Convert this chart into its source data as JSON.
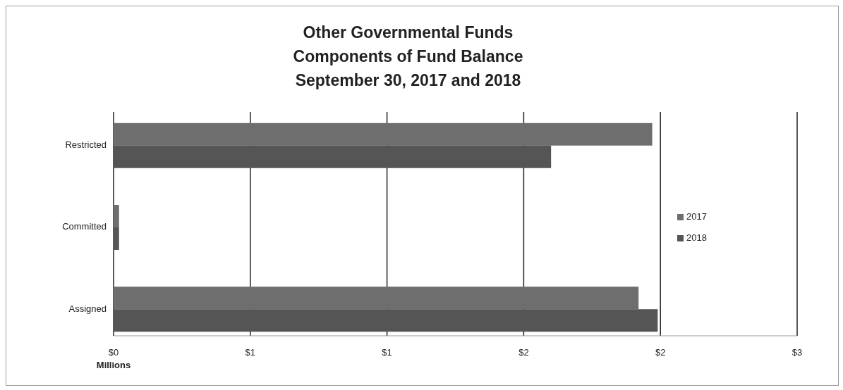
{
  "chart_data": {
    "type": "bar",
    "orientation": "horizontal",
    "title": "Other Governmental Funds\nComponents of Fund Balance\nSeptember 30, 2017 and 2018",
    "xlabel": "Millions",
    "categories": [
      "Restricted",
      "Committed",
      "Assigned"
    ],
    "series": [
      {
        "name": "2017",
        "color": "#6e6e6e",
        "values": [
          1.97,
          0.02,
          1.92
        ]
      },
      {
        "name": "2018",
        "color": "#555555",
        "values": [
          1.6,
          0.02,
          1.99
        ]
      }
    ],
    "xlim": [
      0,
      2.5
    ],
    "xticks": [
      {
        "value": 0,
        "label": "$0"
      },
      {
        "value": 0.5,
        "label": "$1"
      },
      {
        "value": 1,
        "label": "$1"
      },
      {
        "value": 1.5,
        "label": "$2"
      },
      {
        "value": 2,
        "label": "$2"
      },
      {
        "value": 2.5,
        "label": "$3"
      }
    ],
    "grid": "x",
    "legend": "right"
  }
}
